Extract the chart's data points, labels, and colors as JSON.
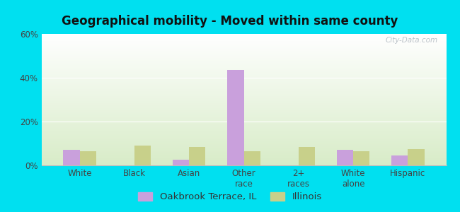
{
  "title": "Geographical mobility - Moved within same county",
  "categories": [
    "White",
    "Black",
    "Asian",
    "Other\nrace",
    "2+\nraces",
    "White\nalone",
    "Hispanic"
  ],
  "oakbrook_values": [
    7.0,
    0.0,
    2.5,
    43.5,
    0.0,
    7.0,
    4.5
  ],
  "illinois_values": [
    6.5,
    9.0,
    8.5,
    6.5,
    8.5,
    6.5,
    7.5
  ],
  "oakbrook_color": "#c9a0dc",
  "illinois_color": "#c8d08a",
  "ylim": [
    0,
    60
  ],
  "yticks": [
    0,
    20,
    40,
    60
  ],
  "ytick_labels": [
    "0%",
    "20%",
    "40%",
    "60%"
  ],
  "bg_top": "#ffffff",
  "bg_bottom": "#d8ecc8",
  "outer_bg": "#00e0f0",
  "bar_width": 0.3,
  "legend_labels": [
    "Oakbrook Terrace, IL",
    "Illinois"
  ],
  "watermark": "City-Data.com",
  "title_fontsize": 12,
  "tick_fontsize": 8.5,
  "legend_fontsize": 9.5
}
